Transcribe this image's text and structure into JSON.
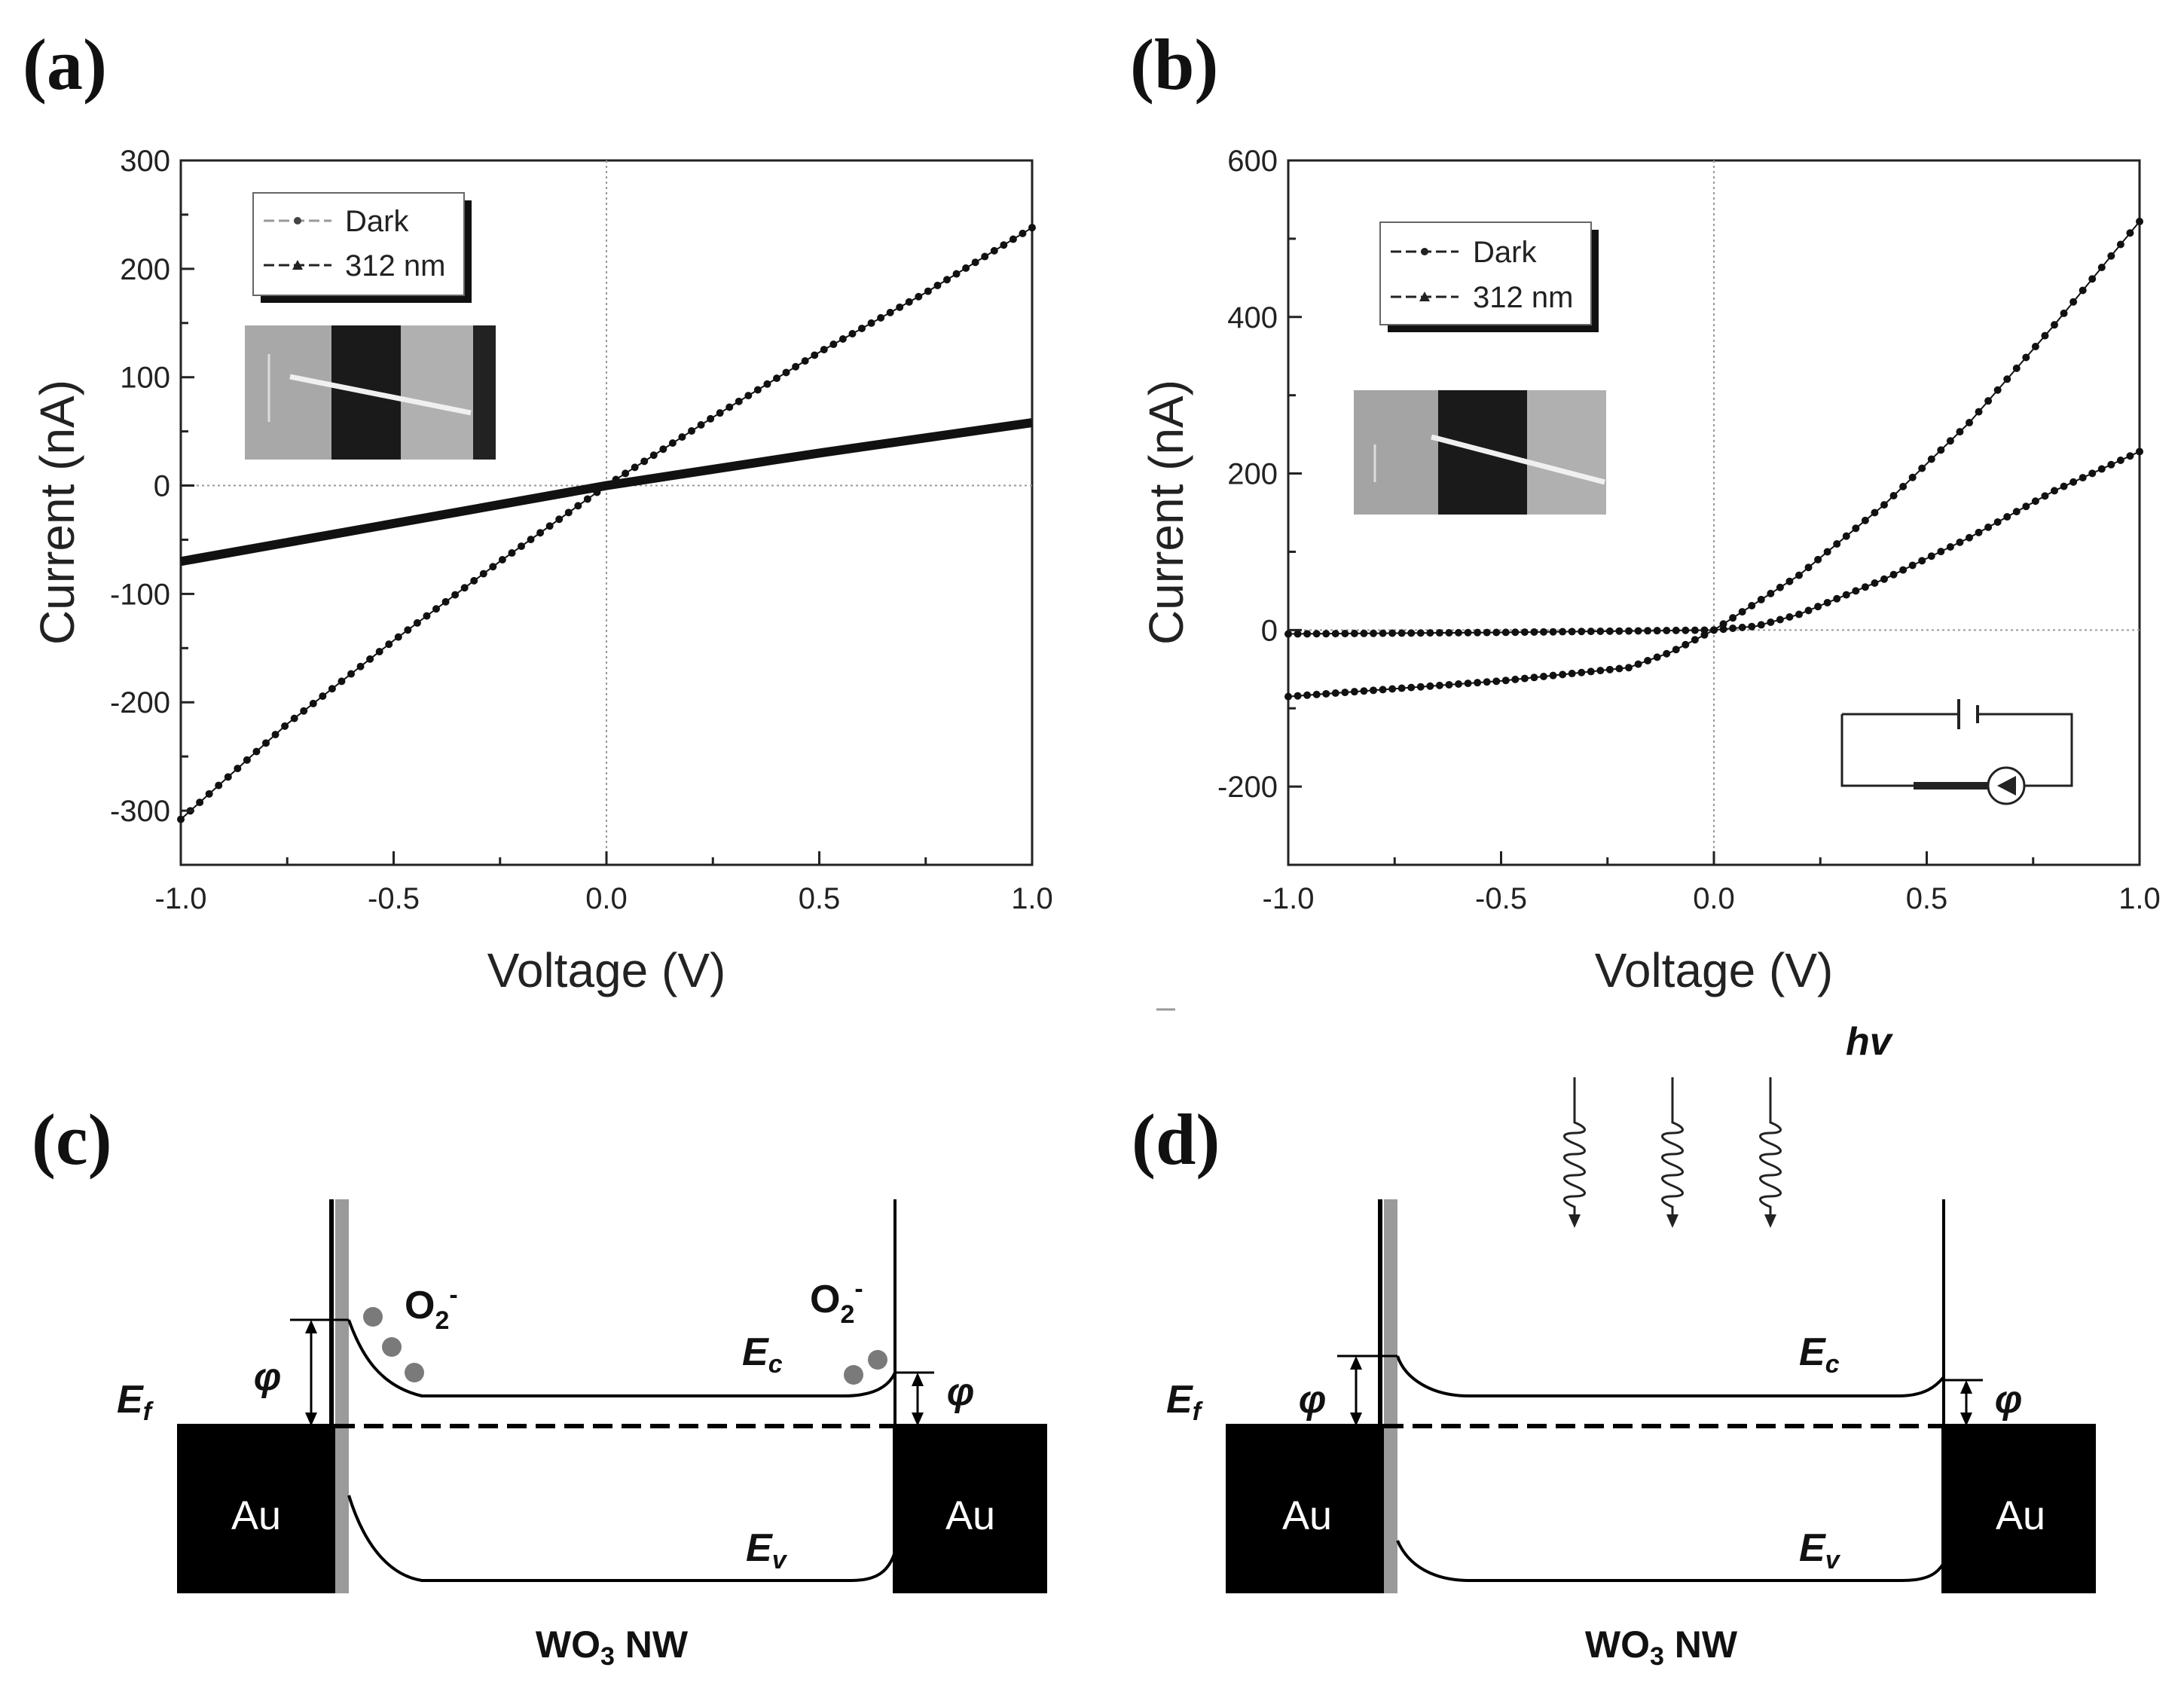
{
  "chart_data": [
    {
      "panel": "(a)",
      "type": "line",
      "xlabel": "Voltage (V)",
      "ylabel": "Current (nA)",
      "xlim": [
        -1.0,
        1.0
      ],
      "ylim": [
        -350,
        300
      ],
      "xticks": [
        -1.0,
        -0.5,
        0.0,
        0.5,
        1.0
      ],
      "xtick_labels": [
        "-1.0",
        "-0.5",
        "0.0",
        "0.5",
        "1.0"
      ],
      "yticks": [
        -300,
        -200,
        -100,
        0,
        100,
        200,
        300
      ],
      "ytick_labels": [
        "-300",
        "-200",
        "-100",
        "0",
        "100",
        "200",
        "300"
      ],
      "legend": [
        "Dark",
        "312 nm"
      ],
      "series": [
        {
          "name": "Dark",
          "x": [
            -1.0,
            -0.5,
            0.0,
            0.5,
            1.0
          ],
          "y": [
            -70,
            -35,
            0,
            30,
            58
          ]
        },
        {
          "name": "312 nm",
          "x": [
            -1.0,
            -0.75,
            -0.5,
            -0.25,
            0.0,
            0.25,
            0.5,
            0.75,
            1.0
          ],
          "y": [
            -308,
            -220,
            -143,
            -70,
            0,
            63,
            123,
            178,
            238
          ]
        }
      ]
    },
    {
      "panel": "(b)",
      "type": "line",
      "xlabel": "Voltage (V)",
      "ylabel": "Current (nA)",
      "xlim": [
        -1.0,
        1.0
      ],
      "ylim": [
        -300,
        600
      ],
      "xticks": [
        -1.0,
        -0.5,
        0.0,
        0.5,
        1.0
      ],
      "xtick_labels": [
        "-1.0",
        "-0.5",
        "0.0",
        "0.5",
        "1.0"
      ],
      "yticks": [
        -200,
        0,
        200,
        400,
        600
      ],
      "ytick_labels": [
        "-200",
        "0",
        "200",
        "400",
        "600"
      ],
      "legend": [
        "Dark",
        "312 nm"
      ],
      "series": [
        {
          "name": "Dark",
          "x": [
            -1.0,
            -0.5,
            0.0,
            0.1,
            0.2,
            0.4,
            0.6,
            0.8,
            1.0
          ],
          "y": [
            -5,
            -3,
            0,
            5,
            20,
            65,
            118,
            178,
            228
          ]
        },
        {
          "name": "312 nm",
          "x": [
            -1.0,
            -0.5,
            -0.2,
            -0.1,
            0.0,
            0.2,
            0.4,
            0.6,
            0.8,
            1.0
          ],
          "y": [
            -85,
            -65,
            -48,
            -28,
            0,
            70,
            160,
            265,
            390,
            522
          ]
        }
      ]
    }
  ],
  "panels": {
    "a": {
      "label": "(a)"
    },
    "b": {
      "label": "(b)"
    },
    "c": {
      "label": "(c)",
      "ef": "E",
      "ef_sub": "f",
      "phi": "φ",
      "ec": "E",
      "ec_sub": "c",
      "ev": "E",
      "ev_sub": "v",
      "o2": "O",
      "o2_sub": "2",
      "o2_sup": "-",
      "au": "Au",
      "nw_pre": "WO",
      "nw_sub": "3",
      "nw_post": " NW"
    },
    "d": {
      "label": "(d)",
      "ef": "E",
      "ef_sub": "f",
      "phi": "φ",
      "ec": "E",
      "ec_sub": "c",
      "ev": "E",
      "ev_sub": "v",
      "au": "Au",
      "nw_pre": "WO",
      "nw_sub": "3",
      "nw_post": " NW",
      "hv": "hv"
    }
  },
  "colors": {
    "ink": "#111111",
    "grid": "#9a9a9a",
    "gray_bar": "#9a9a9a",
    "dot": "#7a7a7a"
  }
}
